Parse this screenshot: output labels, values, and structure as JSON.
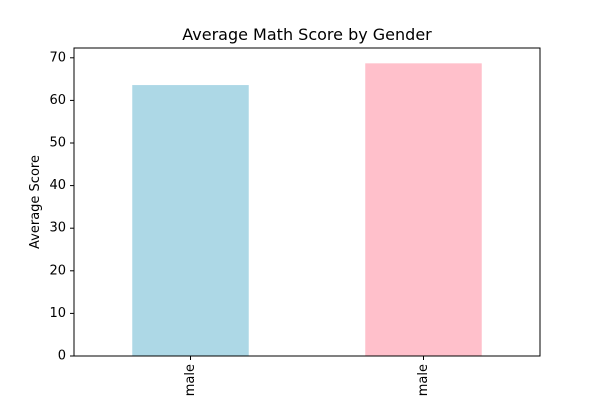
{
  "chart_data": {
    "type": "bar",
    "title": "Average Math Score by Gender",
    "xlabel": "",
    "ylabel": "Average Score",
    "categories": [
      "male",
      "male"
    ],
    "values": [
      63.6,
      68.7
    ],
    "colors": [
      "#add8e6",
      "#ffc0cb"
    ],
    "ylim": [
      0,
      72.3
    ],
    "yticks": [
      0,
      10,
      20,
      30,
      40,
      50,
      60,
      70
    ],
    "grid": false,
    "legend": "none"
  }
}
